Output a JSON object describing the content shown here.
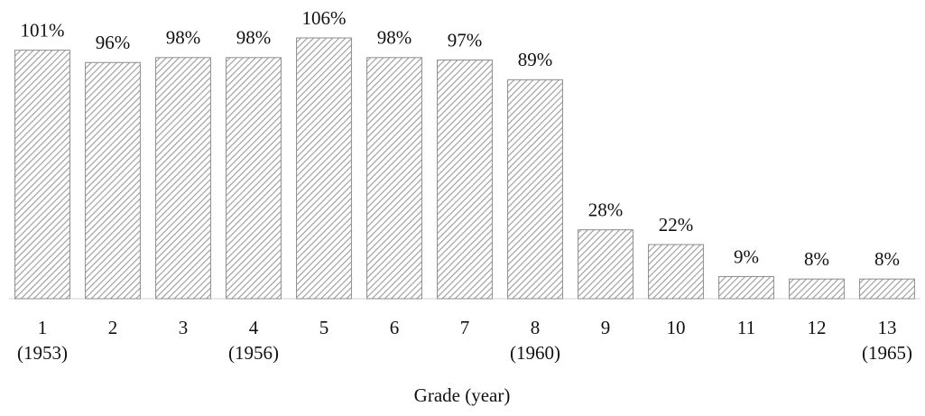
{
  "chart_data": {
    "type": "bar",
    "x_label": "Grade (year)",
    "categories": [
      "1\n(1953)",
      "2",
      "3",
      "4\n(1956)",
      "5",
      "6",
      "7",
      "8\n(1960)",
      "9",
      "10",
      "11",
      "12",
      "13\n(1965)"
    ],
    "values": [
      101,
      96,
      98,
      98,
      106,
      98,
      97,
      89,
      28,
      22,
      9,
      8,
      8
    ],
    "value_labels": [
      "101%",
      "96%",
      "98%",
      "98%",
      "106%",
      "98%",
      "97%",
      "89%",
      "28%",
      "22%",
      "9%",
      "8%",
      "8%"
    ],
    "color": "#8c8c8c"
  }
}
